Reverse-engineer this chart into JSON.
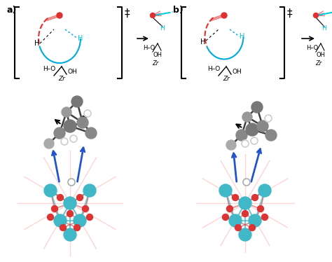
{
  "fig_width": 4.74,
  "fig_height": 3.74,
  "dpi": 100,
  "bg_color": "#ffffff",
  "label_a": "a)",
  "label_b": "b)",
  "red_color": "#e03030",
  "blue_color": "#00aadd",
  "cyan_color": "#00ccdd",
  "gray_color": "#888888",
  "dark_gray": "#404040",
  "light_gray": "#bbbbbb",
  "teal_color": "#40b8c8",
  "orange_red": "#cc3300",
  "zr_text": "Zr",
  "dagger": "‡"
}
